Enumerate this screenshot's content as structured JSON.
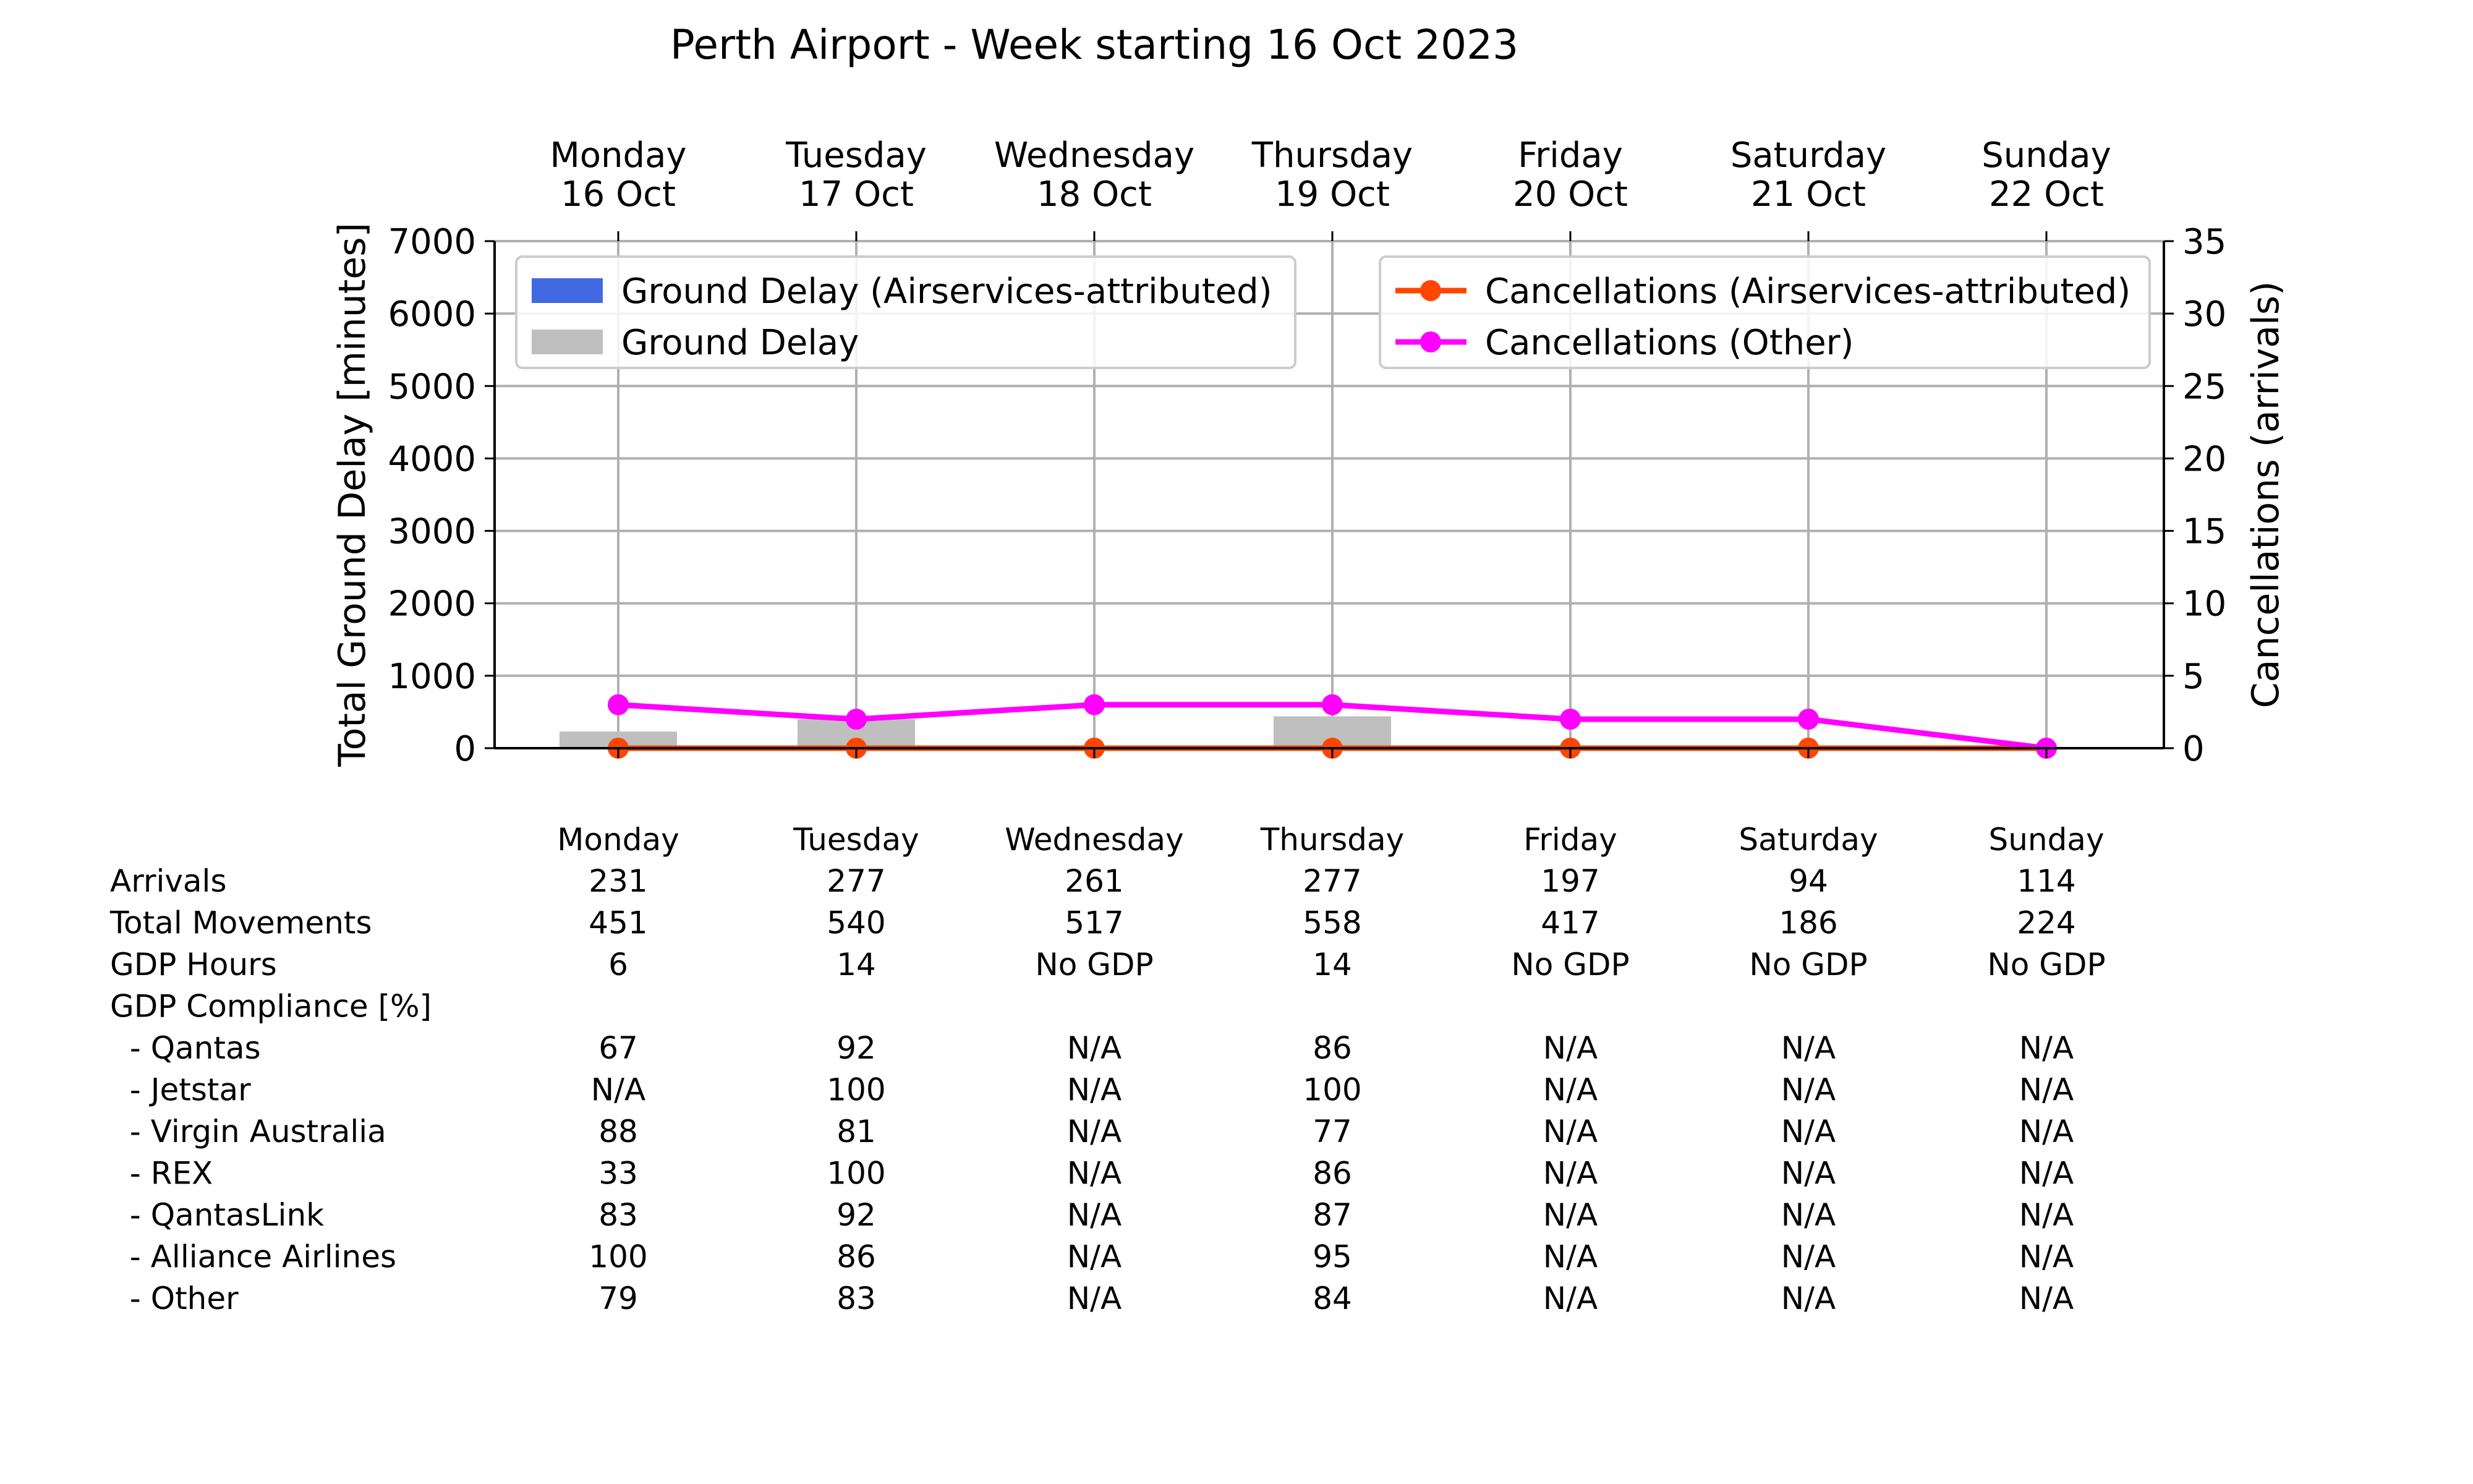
{
  "chart_data": {
    "type": "bar+line",
    "title": "Perth Airport - Week starting 16 Oct 2023",
    "top_axis_labels": [
      [
        "Monday",
        "16 Oct"
      ],
      [
        "Tuesday",
        "17 Oct"
      ],
      [
        "Wednesday",
        "18 Oct"
      ],
      [
        "Thursday",
        "19 Oct"
      ],
      [
        "Friday",
        "20 Oct"
      ],
      [
        "Saturday",
        "21 Oct"
      ],
      [
        "Sunday",
        "22 Oct"
      ]
    ],
    "categories": [
      "Monday",
      "Tuesday",
      "Wednesday",
      "Thursday",
      "Friday",
      "Saturday",
      "Sunday"
    ],
    "ylabel_left": "Total Ground Delay [minutes]",
    "ylabel_right": "Cancellations (arrivals)",
    "ylim_left": [
      0,
      7000
    ],
    "yticks_left": [
      "0",
      "1000",
      "2000",
      "3000",
      "4000",
      "5000",
      "6000",
      "7000"
    ],
    "ylim_right": [
      0,
      35
    ],
    "yticks_right": [
      "0",
      "5",
      "10",
      "15",
      "20",
      "25",
      "30",
      "35"
    ],
    "grid": true,
    "legend_left_placement": "upper-left",
    "legend_right_placement": "upper-right",
    "bar_series": [
      {
        "name": "Ground Delay (Airservices-attributed)",
        "color": "#4169e1",
        "values": [
          0,
          0,
          0,
          0,
          0,
          0,
          0
        ]
      },
      {
        "name": "Ground Delay",
        "color": "#bfbfbf",
        "values": [
          230,
          400,
          0,
          440,
          0,
          0,
          0
        ]
      }
    ],
    "line_series": [
      {
        "name": "Cancellations (Airservices-attributed)",
        "color": "#ff4500",
        "values": [
          0,
          0,
          0,
          0,
          0,
          0,
          0
        ]
      },
      {
        "name": "Cancellations (Other)",
        "color": "#ff00ff",
        "values": [
          3,
          2,
          3,
          3,
          2,
          2,
          0
        ]
      }
    ],
    "table": {
      "header": [
        "Monday",
        "Tuesday",
        "Wednesday",
        "Thursday",
        "Friday",
        "Saturday",
        "Sunday"
      ],
      "rows": [
        {
          "label": "Arrivals",
          "values": [
            "231",
            "277",
            "261",
            "277",
            "197",
            "94",
            "114"
          ]
        },
        {
          "label": "Total Movements",
          "values": [
            "451",
            "540",
            "517",
            "558",
            "417",
            "186",
            "224"
          ]
        },
        {
          "label": "GDP Hours",
          "values": [
            "6",
            "14",
            "No GDP",
            "14",
            "No GDP",
            "No GDP",
            "No GDP"
          ]
        },
        {
          "label": "GDP Compliance [%]",
          "values": [
            "",
            "",
            "",
            "",
            "",
            "",
            ""
          ]
        },
        {
          "label": "  - Qantas",
          "values": [
            "67",
            "92",
            "N/A",
            "86",
            "N/A",
            "N/A",
            "N/A"
          ]
        },
        {
          "label": "  - Jetstar",
          "values": [
            "N/A",
            "100",
            "N/A",
            "100",
            "N/A",
            "N/A",
            "N/A"
          ]
        },
        {
          "label": "  - Virgin Australia",
          "values": [
            "88",
            "81",
            "N/A",
            "77",
            "N/A",
            "N/A",
            "N/A"
          ]
        },
        {
          "label": "  - REX",
          "values": [
            "33",
            "100",
            "N/A",
            "86",
            "N/A",
            "N/A",
            "N/A"
          ]
        },
        {
          "label": "  - QantasLink",
          "values": [
            "83",
            "92",
            "N/A",
            "87",
            "N/A",
            "N/A",
            "N/A"
          ]
        },
        {
          "label": "  - Alliance Airlines",
          "values": [
            "100",
            "86",
            "N/A",
            "95",
            "N/A",
            "N/A",
            "N/A"
          ]
        },
        {
          "label": "  - Other",
          "values": [
            "79",
            "83",
            "N/A",
            "84",
            "N/A",
            "N/A",
            "N/A"
          ]
        }
      ]
    }
  }
}
